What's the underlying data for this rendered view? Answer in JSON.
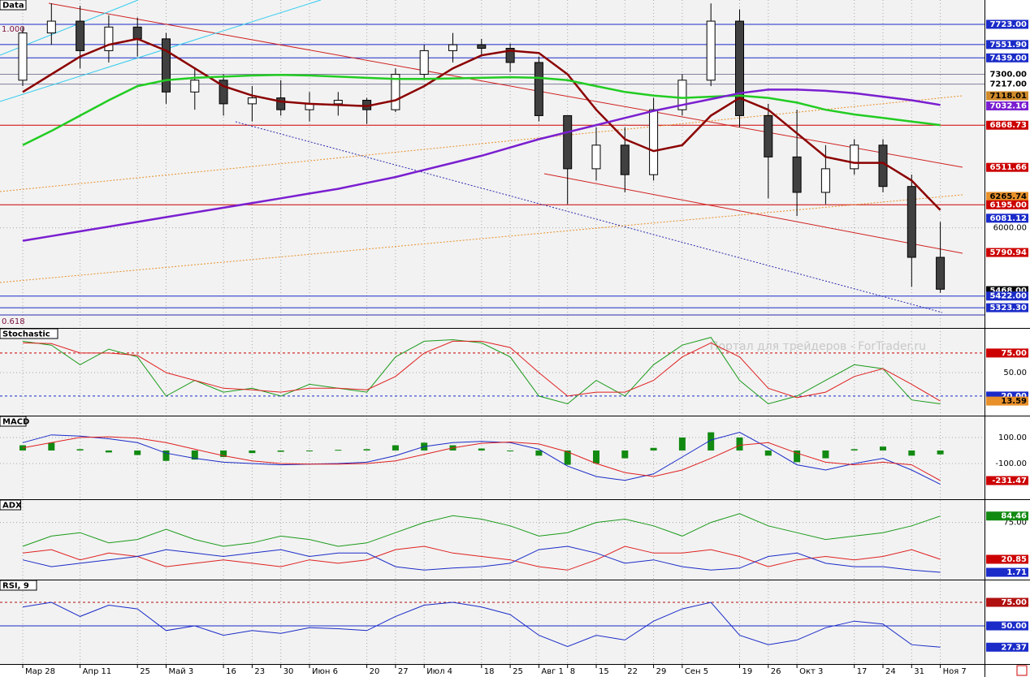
{
  "chart_data": [
    {
      "type": "candlestick",
      "title": "Data",
      "categories": [
        "Мар 28",
        null,
        "Апр 11",
        null,
        "25",
        "Май 3",
        null,
        "16",
        "23",
        "30",
        "Июн 6",
        null,
        "20",
        "27",
        "Июл 4",
        null,
        "18",
        "25",
        "Авг 1",
        "8",
        "15",
        "22",
        "29",
        "Сен 5",
        null,
        "19",
        "26",
        "Окт 3",
        null,
        "17",
        "24",
        "31",
        "Ноя 7"
      ],
      "open": [
        7250,
        7650,
        7750,
        7500,
        7700,
        7600,
        7150,
        7250,
        7050,
        7100,
        7000,
        7050,
        7080,
        7000,
        7300,
        7500,
        7550,
        7520,
        7400,
        6950,
        6500,
        6700,
        6450,
        7000,
        7250,
        7750,
        6950,
        6600,
        6300,
        6500,
        6700,
        6350,
        5750
      ],
      "high": [
        7700,
        7900,
        7880,
        7800,
        7780,
        7650,
        7350,
        7300,
        7200,
        7250,
        7150,
        7150,
        7100,
        7350,
        7550,
        7650,
        7600,
        7560,
        7450,
        6950,
        6850,
        6850,
        7100,
        7300,
        7900,
        7850,
        7050,
        7000,
        6700,
        6750,
        6750,
        6450,
        6050
      ],
      "low": [
        7200,
        7550,
        7350,
        7400,
        7450,
        7050,
        7000,
        6950,
        6900,
        6950,
        6900,
        6950,
        6880,
        6980,
        7250,
        7400,
        7450,
        7320,
        6900,
        6200,
        6400,
        6300,
        6400,
        6950,
        7200,
        6850,
        6250,
        6100,
        6200,
        6450,
        6300,
        5500,
        5450
      ],
      "close": [
        7650,
        7750,
        7500,
        7700,
        7600,
        7150,
        7250,
        7050,
        7100,
        7000,
        7050,
        7080,
        7000,
        7300,
        7500,
        7550,
        7520,
        7400,
        6950,
        6500,
        6700,
        6450,
        7000,
        7250,
        7750,
        6950,
        6600,
        6300,
        6500,
        6700,
        6350,
        5750,
        5480
      ],
      "up_color": "#ffffff",
      "down_color": "#404040",
      "series": [
        {
          "color": "#8b0000",
          "values": [
            7150,
            7300,
            7450,
            7550,
            7600,
            7500,
            7350,
            7200,
            7120,
            7070,
            7050,
            7040,
            7030,
            7080,
            7200,
            7350,
            7460,
            7500,
            7480,
            7300,
            7000,
            6750,
            6650,
            6700,
            6950,
            7100,
            7000,
            6800,
            6600,
            6550,
            6550,
            6400,
            6150
          ]
        },
        {
          "color": "#22cc22",
          "values": [
            6700,
            6820,
            6950,
            7080,
            7200,
            7250,
            7270,
            7280,
            7290,
            7295,
            7290,
            7280,
            7270,
            7260,
            7260,
            7265,
            7270,
            7275,
            7270,
            7250,
            7200,
            7150,
            7120,
            7100,
            7110,
            7120,
            7100,
            7060,
            7000,
            6960,
            6930,
            6900,
            6870
          ]
        },
        {
          "color": "#7a1fd0",
          "values": [
            5890,
            5930,
            5970,
            6010,
            6050,
            6090,
            6130,
            6170,
            6210,
            6250,
            6290,
            6330,
            6380,
            6430,
            6490,
            6550,
            6610,
            6680,
            6750,
            6810,
            6870,
            6930,
            6990,
            7040,
            7090,
            7140,
            7170,
            7170,
            7160,
            7140,
            7110,
            7080,
            7040
          ]
        }
      ],
      "ylim": [
        5152,
        7929
      ],
      "yticks": [
        {
          "value": 6000,
          "label": "6000.00"
        }
      ],
      "levels": [
        {
          "value": 7723,
          "label": "7723.00",
          "color": "#1a2bc8",
          "text_color": "#ffffff",
          "line": true
        },
        {
          "value": 7551.9,
          "label": "7551.90",
          "color": "#1a2bc8",
          "text_color": "#ffffff",
          "line": true
        },
        {
          "value": 7439,
          "label": "7439.00",
          "color": "#1a2bc8",
          "text_color": "#ffffff",
          "line": true
        },
        {
          "value": 7300,
          "label": "7300.00",
          "color": "#ffffff",
          "text_color": "#000000",
          "line": true
        },
        {
          "value": 7217,
          "label": "7217.00",
          "color": "#ffffff",
          "text_color": "#000000",
          "line": true
        },
        {
          "value": 7118.01,
          "color": "#d08a2a",
          "text_color": "#000000",
          "line": false
        },
        {
          "value": 7032.16,
          "color": "#7a1fd0",
          "text_color": "#ffffff",
          "line": false
        },
        {
          "value": 6868.73,
          "color": "#cc0000",
          "text_color": "#ffffff",
          "line": true
        },
        {
          "value": 6511.66,
          "color": "#cc0000",
          "text_color": "#ffffff",
          "line": false
        },
        {
          "value": 6265.74,
          "color": "#e8902a",
          "text_color": "#000000",
          "line": false
        },
        {
          "value": 6195,
          "label": "6195.00",
          "color": "#cc0000",
          "text_color": "#ffffff",
          "line": true
        },
        {
          "value": 6081.12,
          "color": "#1a2bc8",
          "text_color": "#ffffff",
          "line": false
        },
        {
          "value": 5790.94,
          "color": "#cc0000",
          "text_color": "#ffffff",
          "line": false
        },
        {
          "value": 5468,
          "label": "5468.00",
          "color": "#000000",
          "text_color": "#ffffff",
          "line": false
        },
        {
          "value": 5422,
          "label": "5422.00",
          "color": "#1a2bc8",
          "text_color": "#ffffff",
          "line": true
        },
        {
          "value": 5323.3,
          "label": "5323.30",
          "color": "#1a2bc8",
          "text_color": "#ffffff",
          "line": true
        }
      ],
      "annotations": [
        "1.000",
        "0.618"
      ]
    },
    {
      "type": "line",
      "title": "Stochastic",
      "series": [
        {
          "color": "#1a9a1a",
          "values": [
            90,
            85,
            60,
            80,
            70,
            20,
            40,
            25,
            30,
            20,
            35,
            30,
            25,
            70,
            90,
            92,
            88,
            70,
            20,
            10,
            40,
            20,
            60,
            85,
            95,
            40,
            10,
            20,
            40,
            60,
            55,
            15,
            10
          ]
        },
        {
          "color": "#e02020",
          "values": [
            88,
            87,
            75,
            75,
            72,
            50,
            40,
            30,
            28,
            25,
            30,
            30,
            28,
            45,
            75,
            90,
            90,
            82,
            50,
            20,
            25,
            25,
            40,
            70,
            88,
            70,
            30,
            18,
            25,
            45,
            55,
            35,
            13.59
          ]
        }
      ],
      "ylim": [
        -5,
        106
      ],
      "yticks": [
        {
          "value": 50,
          "label": "50.00"
        }
      ],
      "levels": [
        {
          "value": 75,
          "label": "75.00",
          "color": "#cc0000",
          "text_color": "#ffffff",
          "line": true,
          "dash": true
        },
        {
          "value": 20,
          "label": "20.00",
          "color": "#1a2bc8",
          "text_color": "#ffffff",
          "line": true,
          "dash": true
        },
        {
          "value": 13.59,
          "color": "#e8902a",
          "text_color": "#000000",
          "line": false
        }
      ],
      "annotations": [
        "Портал для трейдеров - ForTrader.ru"
      ]
    },
    {
      "type": "line",
      "title": "MACD",
      "series": [
        {
          "type": "bar",
          "color": "#128a12",
          "values": [
            40,
            60,
            10,
            -15,
            -35,
            -80,
            -70,
            -50,
            -20,
            -10,
            0,
            5,
            10,
            40,
            60,
            40,
            15,
            -5,
            -40,
            -110,
            -100,
            -60,
            20,
            100,
            140,
            100,
            -40,
            -90,
            -60,
            10,
            30,
            -40,
            -30
          ]
        },
        {
          "color": "#1a2bc8",
          "values": [
            60,
            120,
            110,
            90,
            60,
            -20,
            -60,
            -90,
            -100,
            -110,
            -105,
            -100,
            -90,
            -40,
            30,
            60,
            70,
            60,
            10,
            -120,
            -200,
            -230,
            -180,
            -50,
            80,
            140,
            20,
            -110,
            -150,
            -100,
            -60,
            -150,
            -260
          ]
        },
        {
          "color": "#e02020",
          "values": [
            20,
            60,
            100,
            105,
            95,
            60,
            10,
            -40,
            -80,
            -100,
            -105,
            -105,
            -100,
            -80,
            -30,
            20,
            55,
            65,
            50,
            -10,
            -100,
            -170,
            -200,
            -150,
            -60,
            40,
            60,
            -20,
            -90,
            -110,
            -90,
            -110,
            -231.47
          ]
        }
      ],
      "ylim": [
        -375,
        262
      ],
      "yticks": [
        {
          "value": 100,
          "label": "100.00"
        },
        {
          "value": -100,
          "label": "-100.00"
        }
      ],
      "levels": [
        {
          "value": -231.47,
          "color": "#cc0000",
          "text_color": "#ffffff",
          "line": false
        }
      ]
    },
    {
      "type": "line",
      "title": "ADX",
      "series": [
        {
          "color": "#1a9a1a",
          "values": [
            40,
            55,
            60,
            45,
            50,
            65,
            50,
            40,
            45,
            55,
            50,
            40,
            45,
            60,
            75,
            85,
            80,
            70,
            55,
            60,
            75,
            80,
            70,
            55,
            75,
            88,
            70,
            60,
            50,
            55,
            60,
            70,
            84.46
          ]
        },
        {
          "color": "#e02020",
          "values": [
            30,
            35,
            20,
            30,
            25,
            10,
            15,
            20,
            15,
            10,
            20,
            15,
            20,
            35,
            40,
            30,
            25,
            20,
            10,
            5,
            20,
            40,
            30,
            30,
            35,
            25,
            10,
            20,
            25,
            20,
            25,
            35,
            20.85
          ]
        },
        {
          "color": "#1a2bc8",
          "values": [
            20,
            10,
            15,
            20,
            25,
            35,
            30,
            25,
            30,
            35,
            25,
            30,
            30,
            10,
            5,
            8,
            10,
            15,
            35,
            40,
            30,
            15,
            20,
            10,
            5,
            8,
            25,
            30,
            15,
            10,
            10,
            5,
            1.71
          ]
        }
      ],
      "ylim": [
        -9,
        108
      ],
      "yticks": [
        {
          "value": 75,
          "label": "75.00"
        }
      ],
      "levels": [
        {
          "value": 84.46,
          "color": "#128a12",
          "text_color": "#ffffff",
          "line": false
        },
        {
          "value": 20.85,
          "color": "#cc0000",
          "text_color": "#ffffff",
          "line": false
        },
        {
          "value": 1.71,
          "color": "#1a2bc8",
          "text_color": "#ffffff",
          "line": false
        }
      ]
    },
    {
      "type": "line",
      "title": "RSI, 9",
      "series": [
        {
          "color": "#1a2bc8",
          "values": [
            70,
            75,
            60,
            72,
            68,
            45,
            50,
            40,
            45,
            42,
            48,
            47,
            45,
            60,
            72,
            75,
            70,
            62,
            40,
            28,
            40,
            35,
            55,
            68,
            75,
            40,
            30,
            35,
            48,
            55,
            52,
            30,
            27.37
          ]
        }
      ],
      "ylim": [
        9.5,
        98.3
      ],
      "yticks": [],
      "levels": [
        {
          "value": 75,
          "label": "75.00",
          "color": "#b01010",
          "text_color": "#ffffff",
          "line": true,
          "dash": true
        },
        {
          "value": 50,
          "label": "50.00",
          "color": "#1a2bc8",
          "text_color": "#ffffff",
          "line": true
        },
        {
          "value": 27.37,
          "color": "#1a2bc8",
          "text_color": "#ffffff",
          "line": false
        }
      ]
    }
  ]
}
